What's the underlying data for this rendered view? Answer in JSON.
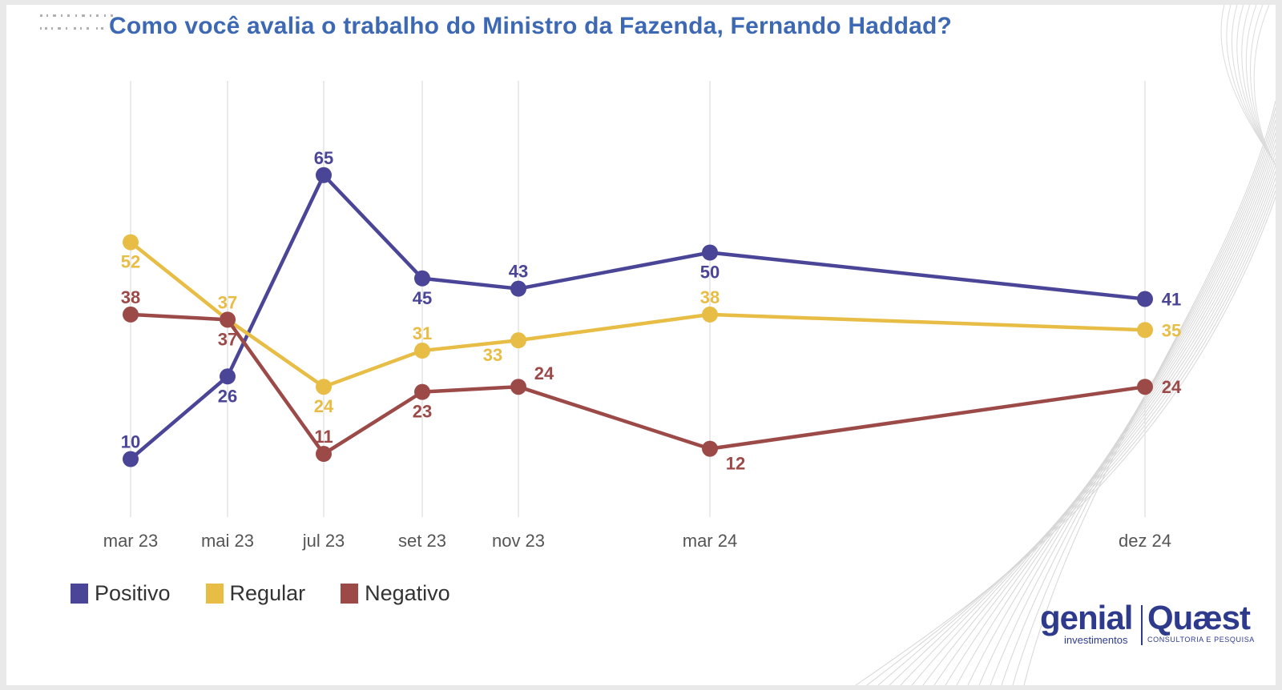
{
  "chart_data": {
    "type": "line",
    "title": "Como você avalia o trabalho do Ministro da Fazenda, Fernando Haddad?",
    "categories": [
      "mar 23",
      "mai 23",
      "jul 23",
      "set 23",
      "nov 23",
      "mar 24",
      "dez 24"
    ],
    "series": [
      {
        "name": "Positivo",
        "color": "#4b4598",
        "values": [
          10,
          26,
          65,
          45,
          43,
          50,
          41
        ]
      },
      {
        "name": "Regular",
        "color": "#e8bd46",
        "values": [
          52,
          37,
          24,
          31,
          33,
          38,
          35
        ]
      },
      {
        "name": "Negativo",
        "color": "#9b4a48",
        "values": [
          38,
          37,
          11,
          23,
          24,
          12,
          24
        ]
      }
    ],
    "xlabel": "",
    "ylabel": "",
    "ylim": [
      0,
      70
    ],
    "grid": "vertical",
    "legend": "bottom-left"
  },
  "logos": {
    "genial": "genial",
    "genial_sub": "investimentos",
    "quaest": "Quæst",
    "quaest_sub": "CONSULTORIA E PESQUISA"
  }
}
